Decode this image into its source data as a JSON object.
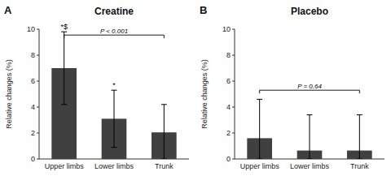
{
  "chart_data": [
    {
      "type": "bar",
      "title": "Creatine",
      "panel_label": "A",
      "categories": [
        "Upper limbs",
        "Lower limbs",
        "Trunk"
      ],
      "values": [
        7.0,
        3.1,
        2.05
      ],
      "errors_upper": [
        2.8,
        2.2,
        2.15
      ],
      "errors_lower": [
        2.8,
        2.2,
        2.05
      ],
      "color": "#404040",
      "y_label": "Relative changes (%)",
      "ylim": [
        0,
        10
      ],
      "yticks": [
        0,
        2,
        4,
        6,
        8,
        10
      ],
      "grid": false,
      "bracket": {
        "label": "P < 0.001",
        "y": 9.55,
        "from": "Upper limbs",
        "to": "Trunk",
        "label_at": "Lower limbs"
      },
      "annotations": [
        {
          "text": "*$",
          "category": "Upper limbs"
        },
        {
          "text": "*",
          "category": "Lower limbs"
        }
      ]
    },
    {
      "type": "bar",
      "title": "Placebo",
      "panel_label": "B",
      "categories": [
        "Upper limbs",
        "Lower limbs",
        "Trunk"
      ],
      "values": [
        1.6,
        0.65,
        0.65
      ],
      "errors_upper": [
        3.0,
        2.75,
        2.75
      ],
      "errors_lower": [
        1.6,
        0.65,
        0.65
      ],
      "color": "#404040",
      "y_label": "Relative changes (%)",
      "ylim": [
        0,
        10
      ],
      "yticks": [
        0,
        2,
        4,
        6,
        8,
        10
      ],
      "grid": false,
      "bracket": {
        "label": "P = 0.64",
        "y": 5.3,
        "from": "Upper limbs",
        "to": "Trunk",
        "label_at": "Lower limbs"
      },
      "annotations": []
    }
  ]
}
